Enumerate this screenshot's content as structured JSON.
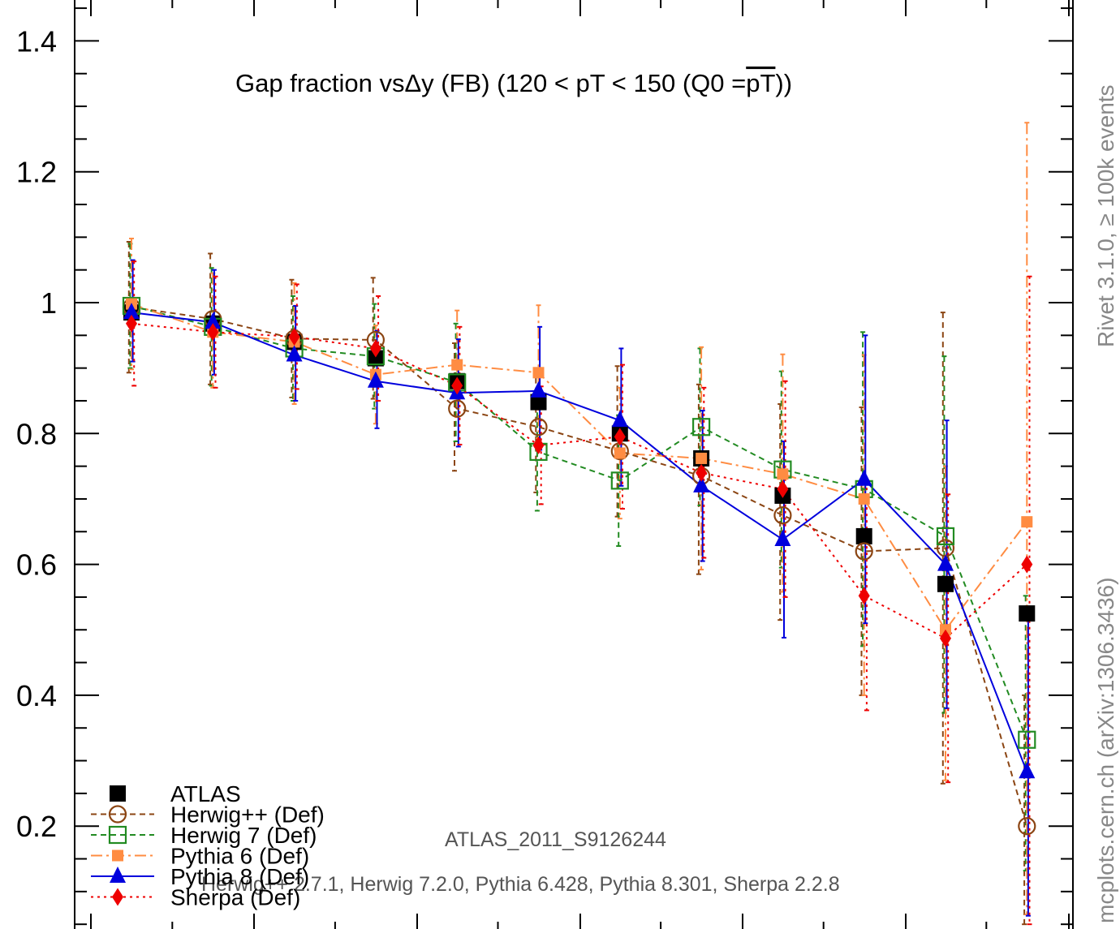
{
  "chart_data": {
    "type": "line",
    "title": "Gap fraction vsΔy (FB) (120 < pT < 150 (Q0 =",
    "title_overline": "pT",
    "title_end": "))",
    "ylim": [
      0.05,
      1.45
    ],
    "yticks": [
      "1.4",
      "1.2",
      "1",
      "0.8",
      "0.6",
      "0.4",
      "0.2"
    ],
    "ytick_values": [
      1.4,
      1.2,
      1.0,
      0.8,
      0.6,
      0.4,
      0.2
    ],
    "x": [
      1,
      2,
      3,
      4,
      5,
      6,
      7,
      8,
      9,
      10,
      11,
      12
    ],
    "series": [
      {
        "name": "ATLAS",
        "color": "#000000",
        "marker": "filled-square",
        "line": "none",
        "values": [
          0.985,
          0.968,
          0.94,
          0.915,
          0.88,
          0.848,
          0.8,
          0.762,
          0.705,
          0.643,
          0.57,
          0.525
        ]
      },
      {
        "name": "Herwig++ (Def)",
        "color": "#8b4513",
        "marker": "open-circle",
        "line": "dashed",
        "values": [
          0.993,
          0.975,
          0.945,
          0.943,
          0.838,
          0.81,
          0.773,
          0.735,
          0.675,
          0.62,
          0.625,
          0.2
        ],
        "err_lo": [
          0.1,
          0.1,
          0.09,
          0.09,
          0.095,
          0.1,
          0.1,
          0.15,
          0.16,
          0.22,
          0.36,
          0.15
        ],
        "err_hi": [
          0.1,
          0.1,
          0.09,
          0.095,
          0.1,
          0.09,
          0.13,
          0.14,
          0.17,
          0.22,
          0.36,
          0.2
        ]
      },
      {
        "name": "Herwig 7 (Def)",
        "color": "#228b22",
        "marker": "open-square",
        "line": "dashed",
        "values": [
          0.995,
          0.963,
          0.93,
          0.918,
          0.878,
          0.772,
          0.728,
          0.81,
          0.745,
          0.715,
          0.643,
          0.332
        ],
        "err_lo": [
          0.095,
          0.09,
          0.08,
          0.08,
          0.09,
          0.09,
          0.1,
          0.12,
          0.15,
          0.24,
          0.27,
          0.2
        ],
        "err_hi": [
          0.095,
          0.09,
          0.08,
          0.08,
          0.09,
          0.09,
          0.1,
          0.12,
          0.15,
          0.24,
          0.275,
          0.22
        ]
      },
      {
        "name": "Pythia 6 (Def)",
        "color": "#ff8c42",
        "marker": "filled-square",
        "line": "dashdot",
        "values": [
          0.998,
          0.955,
          0.94,
          0.89,
          0.905,
          0.893,
          0.77,
          0.762,
          0.738,
          0.7,
          0.5,
          0.665
        ],
        "err_lo": [
          0.1,
          0.085,
          0.095,
          0.075,
          0.08,
          0.1,
          0.1,
          0.17,
          0.18,
          0.3,
          0.23,
          0.6
        ],
        "err_hi": [
          0.1,
          0.09,
          0.09,
          0.075,
          0.083,
          0.103,
          0.1,
          0.17,
          0.183,
          0.22,
          0.25,
          0.61
        ]
      },
      {
        "name": "Pythia 8 (Def)",
        "color": "#0000dd",
        "marker": "filled-triangle",
        "line": "solid",
        "values": [
          0.985,
          0.97,
          0.92,
          0.88,
          0.862,
          0.865,
          0.82,
          0.72,
          0.638,
          0.73,
          0.6,
          0.283
        ],
        "err_lo": [
          0.075,
          0.08,
          0.07,
          0.072,
          0.082,
          0.09,
          0.1,
          0.115,
          0.15,
          0.22,
          0.22,
          0.22
        ],
        "err_hi": [
          0.08,
          0.08,
          0.075,
          0.077,
          0.082,
          0.098,
          0.11,
          0.115,
          0.15,
          0.22,
          0.22,
          0.25
        ]
      },
      {
        "name": "Sherpa (Def)",
        "color": "#ee0000",
        "marker": "filled-diamond",
        "line": "dotted",
        "values": [
          0.968,
          0.955,
          0.948,
          0.93,
          0.873,
          0.782,
          0.795,
          0.74,
          0.715,
          0.552,
          0.487,
          0.6
        ],
        "err_lo": [
          0.095,
          0.085,
          0.08,
          0.08,
          0.09,
          0.09,
          0.11,
          0.13,
          0.165,
          0.175,
          0.22,
          0.55
        ],
        "err_hi": [
          0.095,
          0.085,
          0.08,
          0.08,
          0.09,
          0.09,
          0.11,
          0.13,
          0.165,
          0.175,
          0.22,
          0.44
        ]
      }
    ],
    "legend_placement": "bottom-left",
    "annotations": {
      "analysis": "ATLAS_2011_S9126244",
      "generators": "Herwig++ 2.7.1, Herwig 7.2.0, Pythia 6.428, Pythia 8.301, Sherpa 2.2.8",
      "side_top": "Rivet 3.1.0, ≥ 100k events",
      "side_bottom": "mcplots.cern.ch (arXiv:1306.3436)"
    }
  }
}
